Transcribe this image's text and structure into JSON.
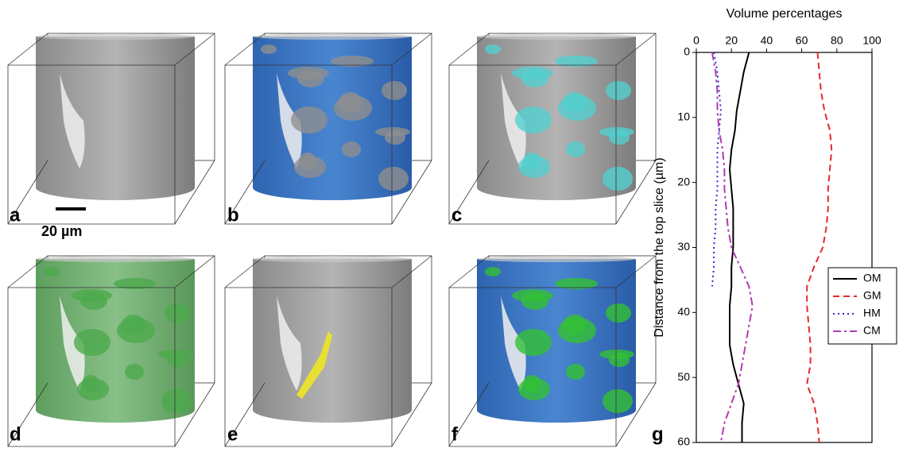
{
  "panel_labels": [
    "a",
    "b",
    "c",
    "d",
    "e",
    "f"
  ],
  "scale_bar": "20 µm",
  "chart_data": {
    "type": "line",
    "orientation": "vertical",
    "panel_label": "g",
    "xlabel": "Distance from the top slice (µm)",
    "ylabel": "Volume percentages",
    "x": [
      0,
      3,
      6,
      9,
      12,
      15,
      18,
      21,
      24,
      27,
      30,
      33,
      36,
      39,
      42,
      45,
      48,
      51,
      54,
      57,
      60
    ],
    "xlim": [
      60,
      0
    ],
    "xticks": [
      0,
      10,
      20,
      30,
      40,
      50,
      60
    ],
    "ylim": [
      0,
      100
    ],
    "yticks": [
      0,
      20,
      40,
      60,
      80,
      100
    ],
    "legend": "right",
    "series": [
      {
        "name": "OM",
        "color": "#000000",
        "dash": "solid",
        "values": [
          30,
          27,
          25,
          23,
          22,
          20,
          19,
          20,
          21,
          21,
          21,
          20,
          20,
          19,
          19,
          19,
          21,
          24,
          27,
          26,
          26
        ]
      },
      {
        "name": "GM",
        "color": "#e8282b",
        "dash": "dashed",
        "values": [
          69,
          70,
          71,
          73,
          76,
          77,
          76,
          75,
          75,
          74,
          72,
          67,
          63,
          63,
          64,
          65,
          65,
          63,
          67,
          69,
          70
        ]
      },
      {
        "name": "HM",
        "color": "#2a2ad0",
        "dash": "dotted",
        "values": [
          10,
          12,
          13,
          14,
          13,
          12,
          12,
          12,
          11,
          11,
          10,
          10,
          9,
          null,
          null,
          null,
          null,
          null,
          null,
          null,
          null
        ]
      },
      {
        "name": "CM",
        "color": "#b03cb0",
        "dash": "dashdot",
        "values": [
          9,
          11,
          12,
          12,
          13,
          15,
          16,
          16,
          17,
          18,
          20,
          25,
          30,
          32,
          30,
          28,
          26,
          24,
          20,
          16,
          14
        ]
      }
    ]
  }
}
